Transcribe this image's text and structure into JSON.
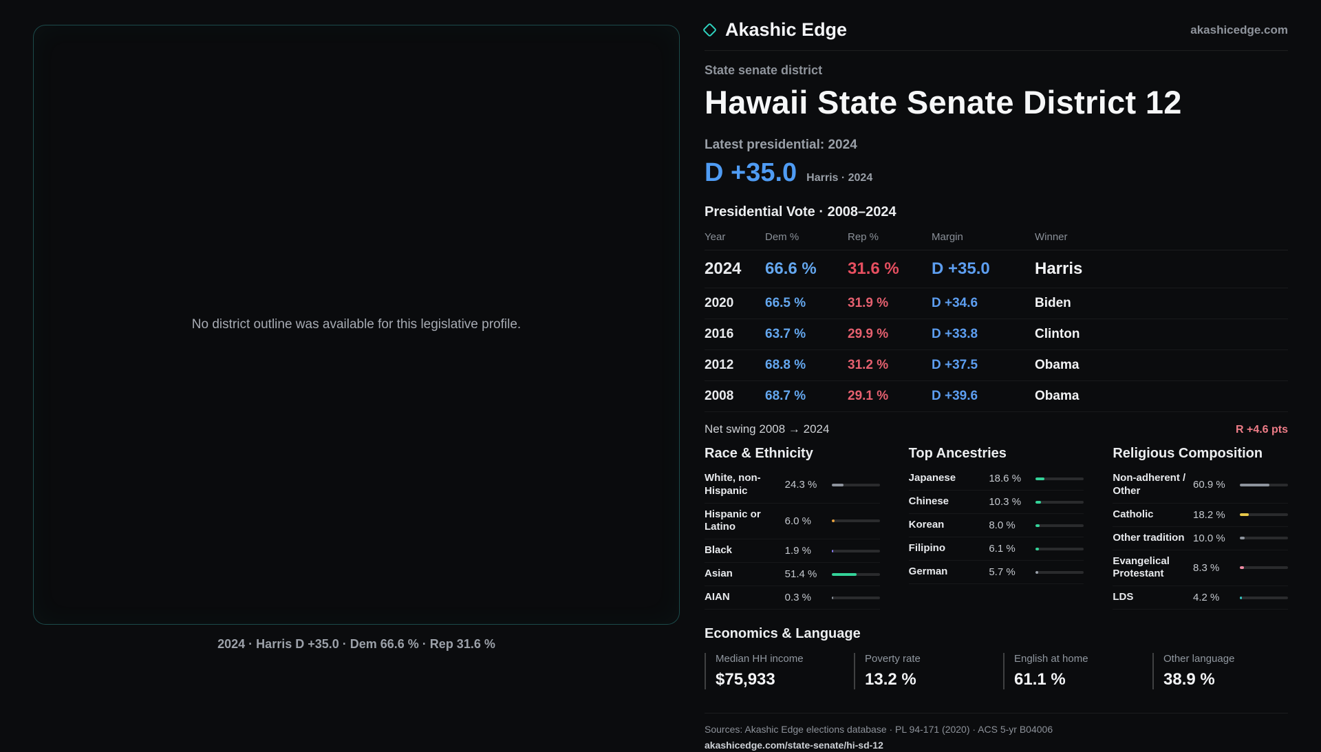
{
  "colors": {
    "background": "#0b0c0e",
    "accent_teal": "#2fd4c0",
    "dem_blue": "#4f9cf4",
    "rep_red": "#e5606f",
    "swing_red": "#ef7d88"
  },
  "map_panel": {
    "placeholder": "No district outline was available for this legislative profile.",
    "caption": "2024 · Harris D +35.0 · Dem 66.6 % · Rep 31.6 %"
  },
  "header": {
    "brand": "Akashic Edge",
    "domain": "akashicedge.com"
  },
  "profile": {
    "kicker": "State senate district",
    "title": "Hawaii State Senate District 12",
    "latest_label": "Latest presidential: 2024",
    "margin_big": "D +35.0",
    "margin_detail": "Harris · 2024",
    "table_title": "Presidential Vote · 2008–2024"
  },
  "vote_table": {
    "columns": [
      "Year",
      "Dem %",
      "Rep %",
      "Margin",
      "Winner"
    ],
    "rows": [
      {
        "year": "2024",
        "dem": "66.6 %",
        "rep": "31.6 %",
        "margin": "D +35.0",
        "winner": "Harris"
      },
      {
        "year": "2020",
        "dem": "66.5 %",
        "rep": "31.9 %",
        "margin": "D +34.6",
        "winner": "Biden"
      },
      {
        "year": "2016",
        "dem": "63.7 %",
        "rep": "29.9 %",
        "margin": "D +33.8",
        "winner": "Clinton"
      },
      {
        "year": "2012",
        "dem": "68.8 %",
        "rep": "31.2 %",
        "margin": "D +37.5",
        "winner": "Obama"
      },
      {
        "year": "2008",
        "dem": "68.7 %",
        "rep": "29.1 %",
        "margin": "D +39.6",
        "winner": "Obama"
      }
    ]
  },
  "net_swing": {
    "label": "Net swing 2008 → 2024",
    "value": "R +4.6 pts"
  },
  "demographics": [
    {
      "title": "Race & Ethnicity",
      "rows": [
        {
          "label": "White, non-Hispanic",
          "value": "24.3 %",
          "pct": 24.3,
          "color": "#8d939c"
        },
        {
          "label": "Hispanic or Latino",
          "value": "6.0 %",
          "pct": 6.0,
          "color": "#e8a23d"
        },
        {
          "label": "Black",
          "value": "1.9 %",
          "pct": 1.9,
          "color": "#8b7cf6"
        },
        {
          "label": "Asian",
          "value": "51.4 %",
          "pct": 51.4,
          "color": "#34d399"
        },
        {
          "label": "AIAN",
          "value": "0.3 %",
          "pct": 0.3,
          "color": "#8d939c"
        }
      ]
    },
    {
      "title": "Top Ancestries",
      "rows": [
        {
          "label": "Japanese",
          "value": "18.6 %",
          "pct": 18.6,
          "color": "#34d399"
        },
        {
          "label": "Chinese",
          "value": "10.3 %",
          "pct": 10.3,
          "color": "#34d399"
        },
        {
          "label": "Korean",
          "value": "8.0 %",
          "pct": 8.0,
          "color": "#34d399"
        },
        {
          "label": "Filipino",
          "value": "6.1 %",
          "pct": 6.1,
          "color": "#34d399"
        },
        {
          "label": "German",
          "value": "5.7 %",
          "pct": 5.7,
          "color": "#9aa1ab"
        }
      ]
    },
    {
      "title": "Religious Composition",
      "rows": [
        {
          "label": "Non-adherent / Other",
          "value": "60.9 %",
          "pct": 60.9,
          "color": "#8d939c"
        },
        {
          "label": "Catholic",
          "value": "18.2 %",
          "pct": 18.2,
          "color": "#e7c84a"
        },
        {
          "label": "Other tradition",
          "value": "10.0 %",
          "pct": 10.0,
          "color": "#8d939c"
        },
        {
          "label": "Evangelical Protestant",
          "value": "8.3 %",
          "pct": 8.3,
          "color": "#ef8ba4"
        },
        {
          "label": "LDS",
          "value": "4.2 %",
          "pct": 4.2,
          "color": "#35c8c2"
        }
      ]
    }
  ],
  "economics": {
    "title": "Economics & Language",
    "stats": [
      {
        "label": "Median HH income",
        "value": "$75,933"
      },
      {
        "label": "Poverty rate",
        "value": "13.2 %"
      },
      {
        "label": "English at home",
        "value": "61.1 %"
      },
      {
        "label": "Other language",
        "value": "38.9 %"
      }
    ]
  },
  "footer": {
    "sources": "Sources: Akashic Edge elections database · PL 94-171 (2020) · ACS 5-yr B04006",
    "permalink": "akashicedge.com/state-senate/hi-sd-12"
  }
}
